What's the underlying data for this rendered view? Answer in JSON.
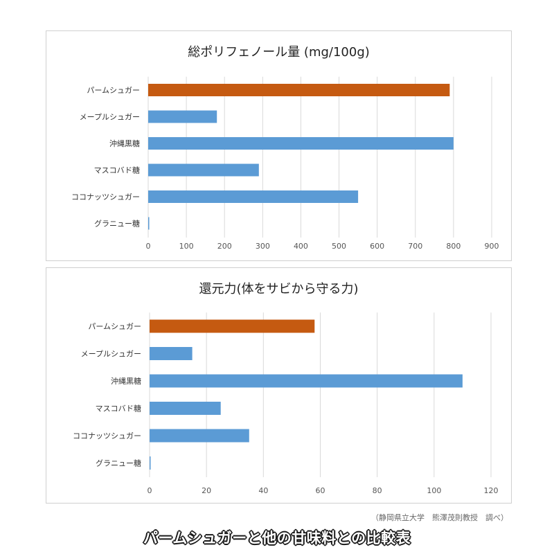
{
  "colors": {
    "highlight": "#C55A11",
    "default": "#5B9BD5",
    "grid": "#d9d9d9"
  },
  "chart_data": [
    {
      "type": "bar",
      "orientation": "horizontal",
      "title": "総ポリフェノール量 (mg/100g)",
      "categories": [
        "パームシュガー",
        "メープルシュガー",
        "沖縄黒糖",
        "マスコバド糖",
        "ココナッツシュガー",
        "グラニュー糖"
      ],
      "values": [
        790,
        180,
        800,
        290,
        550,
        2
      ],
      "highlight_index": 0,
      "xlim": [
        0,
        900
      ],
      "ticks": [
        0,
        100,
        200,
        300,
        400,
        500,
        600,
        700,
        800,
        900
      ],
      "grid": true,
      "legend": false
    },
    {
      "type": "bar",
      "orientation": "horizontal",
      "title": "還元力(体をサビから守る力)",
      "categories": [
        "パームシュガー",
        "メープルシュガー",
        "沖縄黒糖",
        "マスコバド糖",
        "ココナッツシュガー",
        "グラニュー糖"
      ],
      "values": [
        58,
        15,
        110,
        25,
        35,
        0.3
      ],
      "highlight_index": 0,
      "xlim": [
        0,
        120
      ],
      "ticks": [
        0,
        20,
        40,
        60,
        80,
        100,
        120
      ],
      "grid": true,
      "legend": false
    }
  ],
  "source_note": "（静岡県立大学　熊澤茂則教授　調べ）",
  "caption": "パームシュガーと他の甘味料との比較表"
}
